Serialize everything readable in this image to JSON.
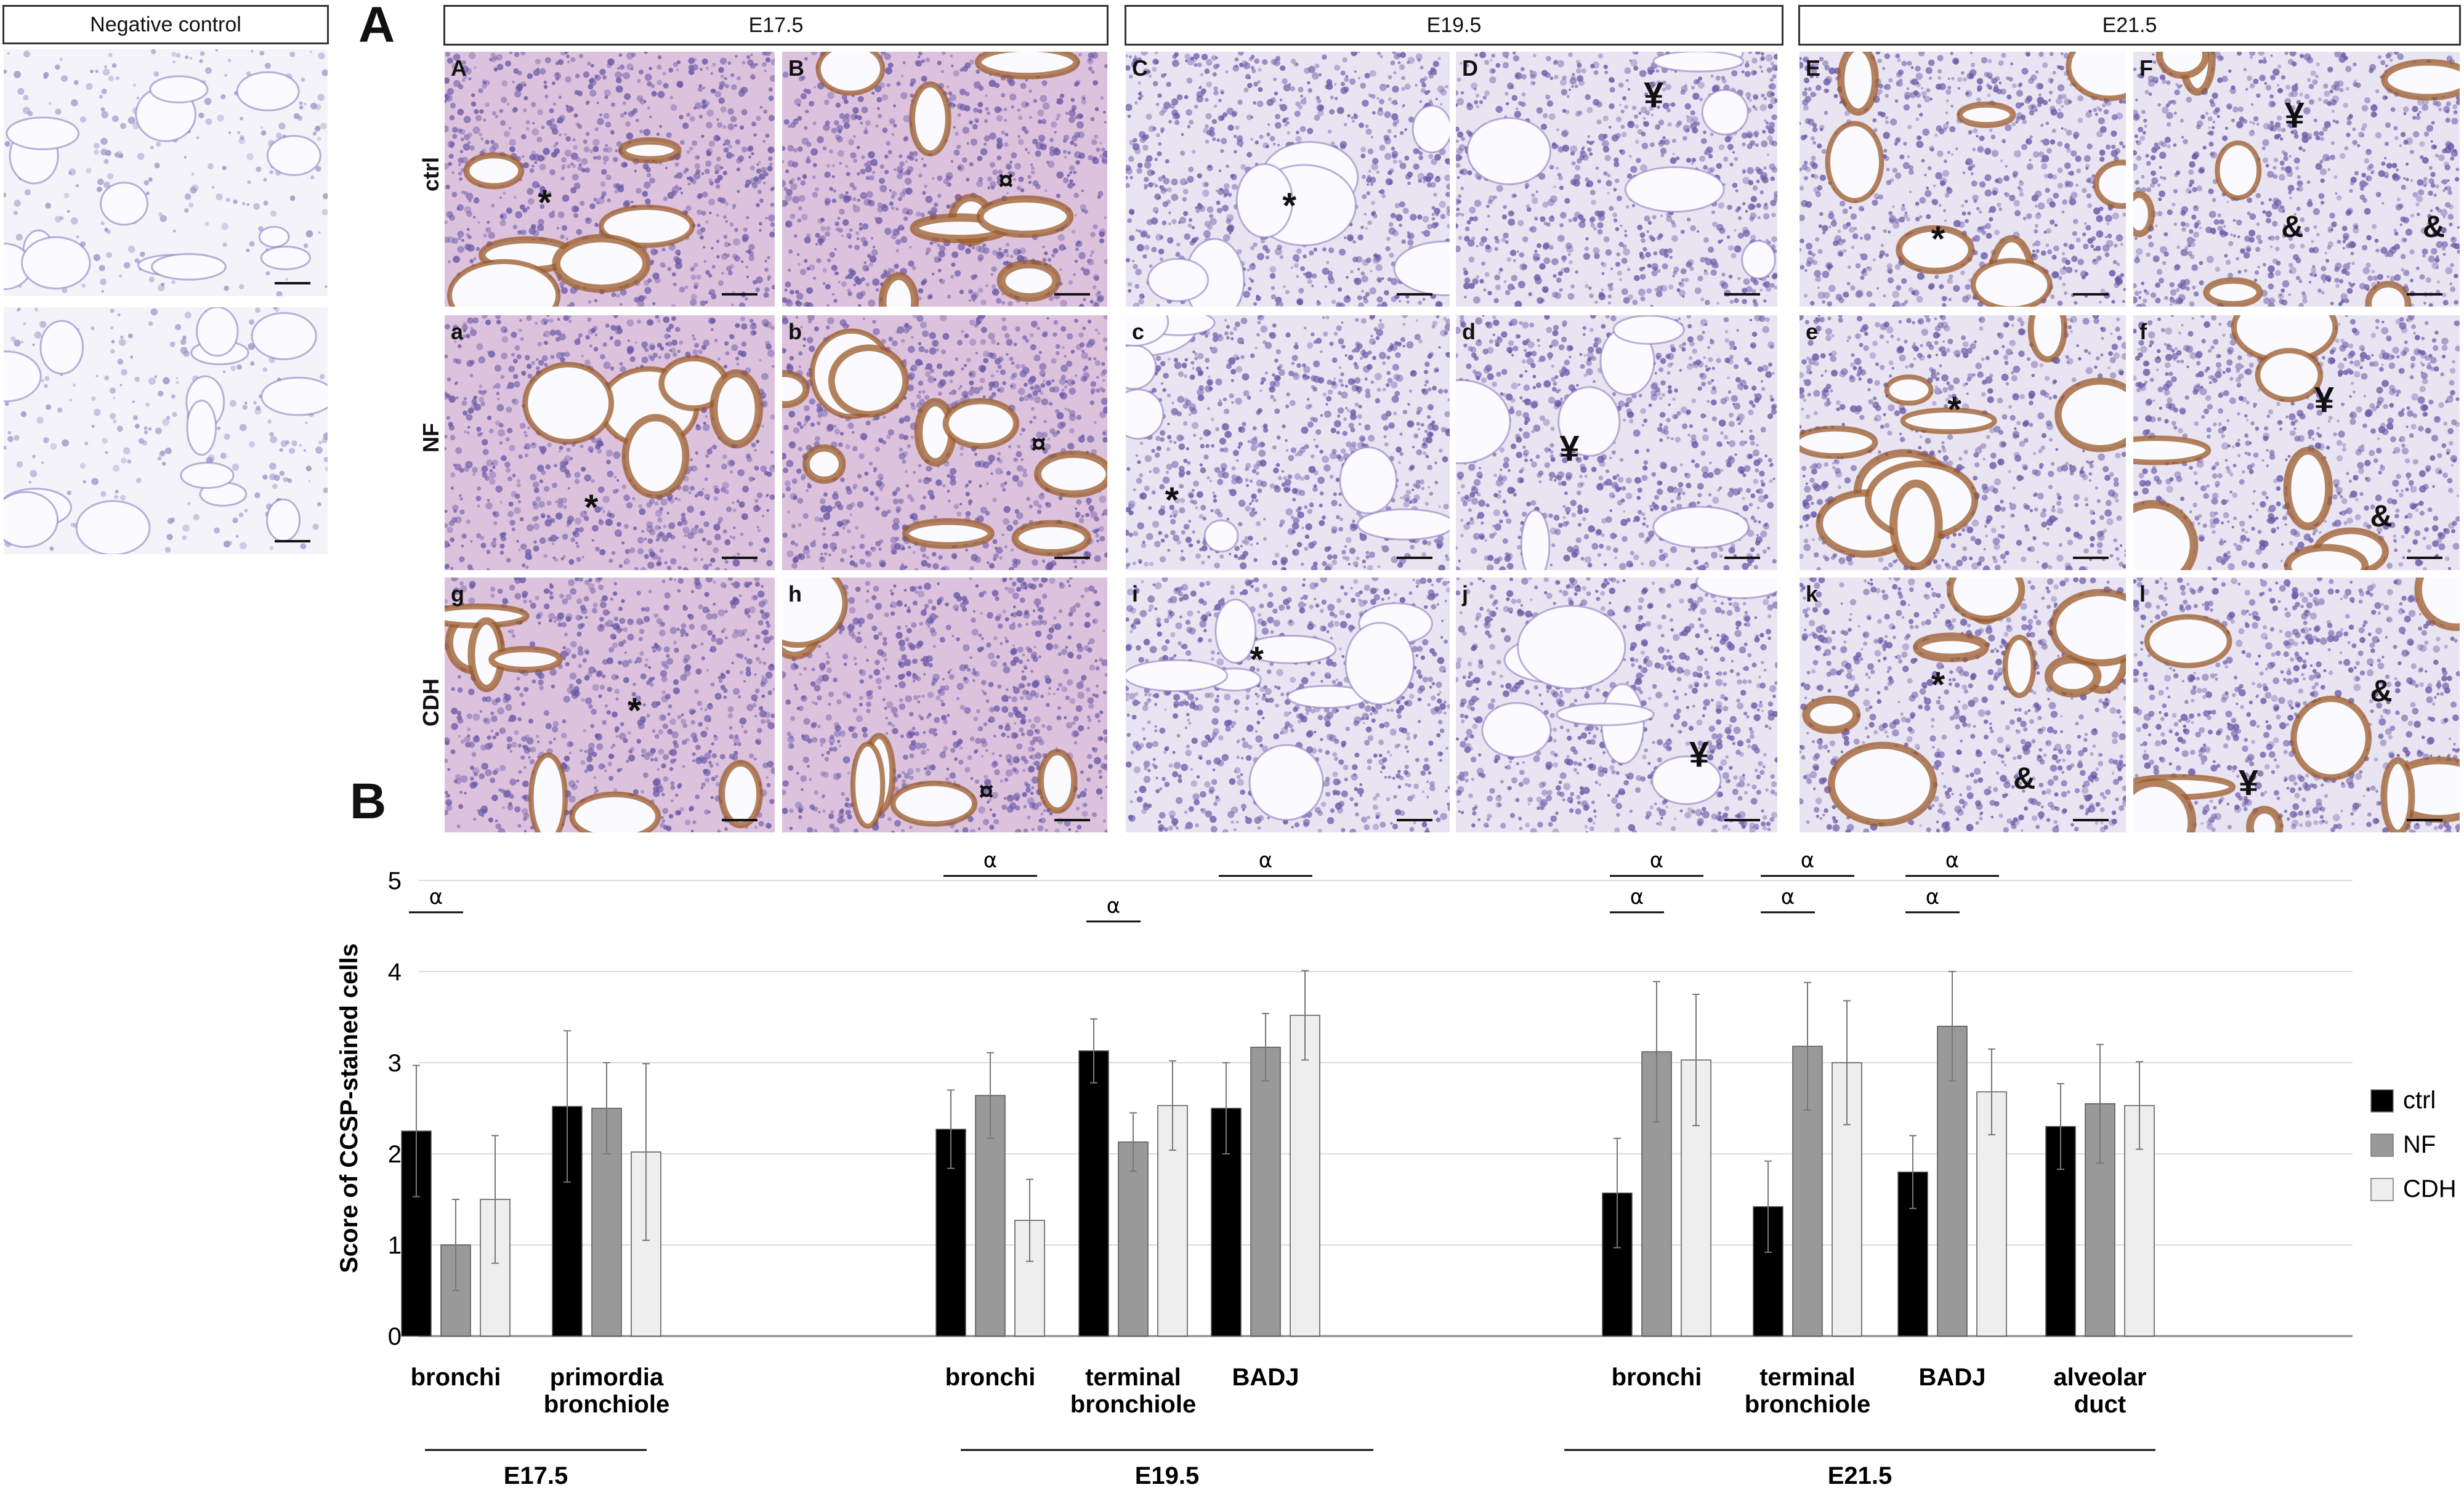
{
  "figure": {
    "panel_a_label": "A",
    "panel_b_label": "B",
    "negative_control": "Negative control",
    "stage_headers": [
      "E17.5",
      "E19.5",
      "E21.5"
    ],
    "row_labels": [
      "ctrl",
      "NF",
      "CDH"
    ],
    "panel_letters": {
      "ctrl": [
        "A",
        "B",
        "C",
        "D",
        "E",
        "F"
      ],
      "NF": [
        "a",
        "b",
        "c",
        "d",
        "e",
        "f"
      ],
      "CDH": [
        "g",
        "h",
        "i",
        "j",
        "k",
        "l"
      ]
    },
    "markers": {
      "asterisk": "*",
      "yen": "¥",
      "ampersand": "&",
      "currency": "¤",
      "brace": "}"
    },
    "colors": {
      "tissue_bg": "#e9e4f1",
      "nuclei": "#6a5aa8",
      "brown_stain": "#9a5a2a",
      "pink_tissue": "#c9a0c8"
    }
  },
  "chart_data": {
    "type": "bar",
    "ylabel": "Score of CCSP-stained cells",
    "ylim": [
      0,
      5
    ],
    "yticks": [
      0,
      1,
      2,
      3,
      4,
      5
    ],
    "grid": true,
    "legend_position": "right",
    "series_names": [
      "ctrl",
      "NF",
      "CDH"
    ],
    "series_colors": [
      "#000000",
      "#999999",
      "#eeeeee"
    ],
    "groups": [
      {
        "stage": "E17.5",
        "categories": [
          {
            "label": [
              "bronchi"
            ],
            "values": [
              2.25,
              1.0,
              1.5
            ],
            "errors": [
              0.72,
              0.5,
              0.7
            ]
          },
          {
            "label": [
              "primordia",
              "bronchiole"
            ],
            "values": [
              2.52,
              2.5,
              2.02
            ],
            "errors": [
              0.83,
              0.5,
              0.97
            ]
          }
        ]
      },
      {
        "stage": "E19.5",
        "categories": [
          {
            "label": [
              "bronchi"
            ],
            "values": [
              2.27,
              2.64,
              1.27
            ],
            "errors": [
              0.43,
              0.47,
              0.45
            ]
          },
          {
            "label": [
              "terminal",
              "bronchiole"
            ],
            "values": [
              3.13,
              2.13,
              2.53
            ],
            "errors": [
              0.35,
              0.32,
              0.49
            ]
          },
          {
            "label": [
              "BADJ"
            ],
            "values": [
              2.5,
              3.17,
              3.52
            ],
            "errors": [
              0.5,
              0.37,
              0.49
            ]
          }
        ]
      },
      {
        "stage": "E21.5",
        "categories": [
          {
            "label": [
              "bronchi"
            ],
            "values": [
              1.57,
              3.12,
              3.03
            ],
            "errors": [
              0.6,
              0.77,
              0.72
            ]
          },
          {
            "label": [
              "terminal",
              "bronchiole"
            ],
            "values": [
              1.42,
              3.18,
              3.0
            ],
            "errors": [
              0.5,
              0.7,
              0.68
            ]
          },
          {
            "label": [
              "BADJ"
            ],
            "values": [
              1.8,
              3.4,
              2.68
            ],
            "errors": [
              0.4,
              0.6,
              0.47
            ]
          },
          {
            "label": [
              "alveolar",
              "duct"
            ],
            "values": [
              2.3,
              2.55,
              2.53
            ],
            "errors": [
              0.47,
              0.65,
              0.48
            ]
          }
        ]
      }
    ],
    "significance": [
      {
        "symbol": "α",
        "group": 0,
        "category": 0,
        "from": 0,
        "to": 1,
        "y": 4.65
      },
      {
        "symbol": "α",
        "group": 1,
        "category": 0,
        "from": 0,
        "to": 2,
        "y": 5.05
      },
      {
        "symbol": "α",
        "group": 1,
        "category": 1,
        "from": 0,
        "to": 1,
        "y": 4.55
      },
      {
        "symbol": "α",
        "group": 1,
        "category": 2,
        "from": 0,
        "to": 2,
        "y": 5.05
      },
      {
        "symbol": "α",
        "group": 2,
        "category": 0,
        "from": 0,
        "to": 2,
        "y": 5.05
      },
      {
        "symbol": "α",
        "group": 2,
        "category": 0,
        "from": 0,
        "to": 1,
        "y": 4.65
      },
      {
        "symbol": "α",
        "group": 2,
        "category": 1,
        "from": 0,
        "to": 2,
        "y": 5.05
      },
      {
        "symbol": "α",
        "group": 2,
        "category": 1,
        "from": 0,
        "to": 1,
        "y": 4.65
      },
      {
        "symbol": "α",
        "group": 2,
        "category": 2,
        "from": 0,
        "to": 2,
        "y": 5.05
      },
      {
        "symbol": "α",
        "group": 2,
        "category": 2,
        "from": 0,
        "to": 1,
        "y": 4.65
      }
    ]
  }
}
